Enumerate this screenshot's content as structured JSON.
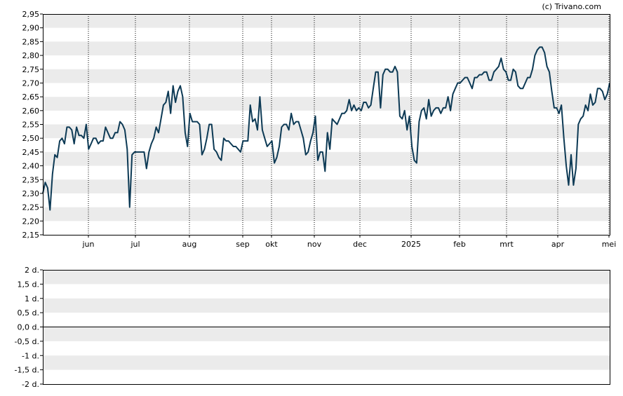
{
  "credit": "(c) Trivano.com",
  "colors": {
    "line": "#0d3a55",
    "band": "#ebebeb",
    "frame": "#000000",
    "zero_line": "#000000"
  },
  "chart_data": [
    {
      "type": "line",
      "title": "",
      "xlabel": "",
      "ylabel": "",
      "grid": true,
      "ylim": [
        2.15,
        2.95
      ],
      "y_ticks": [
        "2,15",
        "2,20",
        "2,25",
        "2,30",
        "2,35",
        "2,40",
        "2,45",
        "2,50",
        "2,55",
        "2,60",
        "2,65",
        "2,70",
        "2,75",
        "2,80",
        "2,85",
        "2,90",
        "2,95"
      ],
      "x_ticks": [
        "jun",
        "jul",
        "aug",
        "sep",
        "okt",
        "nov",
        "dec",
        "2025",
        "feb",
        "mrt",
        "apr",
        "mei"
      ],
      "series": [
        {
          "values": [
            2.3,
            2.34,
            2.32,
            2.24,
            2.37,
            2.44,
            2.43,
            2.49,
            2.5,
            2.48,
            2.54,
            2.54,
            2.53,
            2.48,
            2.54,
            2.51,
            2.51,
            2.5,
            2.55,
            2.46,
            2.48,
            2.5,
            2.5,
            2.48,
            2.49,
            2.49,
            2.54,
            2.52,
            2.5,
            2.5,
            2.52,
            2.52,
            2.56,
            2.55,
            2.53,
            2.46,
            2.25,
            2.44,
            2.45,
            2.45,
            2.45,
            2.45,
            2.45,
            2.39,
            2.45,
            2.48,
            2.5,
            2.54,
            2.52,
            2.57,
            2.62,
            2.63,
            2.67,
            2.59,
            2.69,
            2.63,
            2.67,
            2.69,
            2.65,
            2.52,
            2.47,
            2.59,
            2.56,
            2.56,
            2.56,
            2.55,
            2.44,
            2.46,
            2.5,
            2.55,
            2.55,
            2.46,
            2.45,
            2.43,
            2.42,
            2.5,
            2.49,
            2.49,
            2.48,
            2.47,
            2.47,
            2.46,
            2.45,
            2.49,
            2.49,
            2.49,
            2.62,
            2.56,
            2.57,
            2.53,
            2.65,
            2.53,
            2.5,
            2.47,
            2.48,
            2.49,
            2.41,
            2.43,
            2.47,
            2.54,
            2.55,
            2.55,
            2.53,
            2.59,
            2.55,
            2.56,
            2.56,
            2.53,
            2.5,
            2.44,
            2.45,
            2.49,
            2.52,
            2.58,
            2.42,
            2.45,
            2.45,
            2.38,
            2.52,
            2.46,
            2.57,
            2.56,
            2.55,
            2.57,
            2.59,
            2.59,
            2.6,
            2.64,
            2.6,
            2.62,
            2.6,
            2.61,
            2.6,
            2.63,
            2.63,
            2.61,
            2.62,
            2.68,
            2.74,
            2.74,
            2.61,
            2.73,
            2.75,
            2.75,
            2.74,
            2.74,
            2.76,
            2.74,
            2.58,
            2.57,
            2.6,
            2.53,
            2.58,
            2.47,
            2.42,
            2.41,
            2.56,
            2.6,
            2.61,
            2.57,
            2.64,
            2.58,
            2.6,
            2.61,
            2.61,
            2.59,
            2.61,
            2.61,
            2.65,
            2.6,
            2.66,
            2.68,
            2.7,
            2.7,
            2.71,
            2.72,
            2.72,
            2.7,
            2.68,
            2.72,
            2.72,
            2.73,
            2.73,
            2.74,
            2.74,
            2.71,
            2.71,
            2.74,
            2.75,
            2.76,
            2.79,
            2.75,
            2.74,
            2.71,
            2.71,
            2.75,
            2.74,
            2.69,
            2.68,
            2.68,
            2.7,
            2.72,
            2.72,
            2.75,
            2.8,
            2.82,
            2.83,
            2.83,
            2.81,
            2.76,
            2.74,
            2.67,
            2.61,
            2.61,
            2.59,
            2.62,
            2.5,
            2.4,
            2.33,
            2.44,
            2.33,
            2.39,
            2.55,
            2.57,
            2.58,
            2.62,
            2.6,
            2.66,
            2.62,
            2.63,
            2.68,
            2.68,
            2.67,
            2.64,
            2.66,
            2.7
          ]
        }
      ]
    },
    {
      "type": "line",
      "title": "",
      "xlabel": "",
      "ylabel": "",
      "grid": true,
      "ylim": [
        -2,
        2
      ],
      "y_ticks": [
        "-2 d.",
        "-1,5 d.",
        "-1 d.",
        "-0,5 d.",
        "0,0 d.",
        "0,5 d.",
        "1 d.",
        "1,5 d.",
        "2 d."
      ],
      "series": []
    }
  ]
}
